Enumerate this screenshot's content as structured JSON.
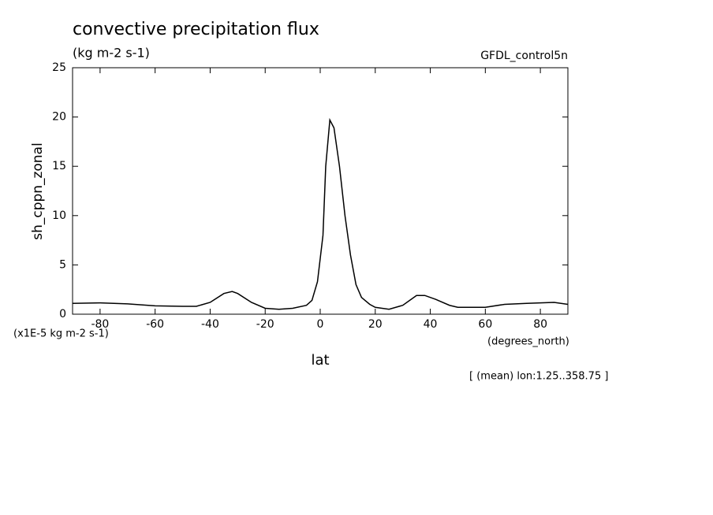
{
  "chart_data": {
    "type": "line",
    "title": "convective precipitation flux",
    "subtitle": "(kg m-2 s-1)",
    "source": "GFDL_control5n",
    "y_label": "sh_cppn_zonal",
    "y_unit_label": "(x1E-5 kg m-2 s-1)",
    "x_label": "lat",
    "x_unit_label": "(degrees_north)",
    "annotation": "[ (mean) lon:1.25..358.75 ]",
    "x": [
      -90,
      -80,
      -70,
      -60,
      -50,
      -45,
      -40,
      -35,
      -32,
      -30,
      -25,
      -20,
      -15,
      -10,
      -5,
      -3,
      -1,
      1,
      2,
      3.5,
      5,
      7,
      9,
      11,
      13,
      15,
      18,
      20,
      25,
      30,
      35,
      38,
      42,
      47,
      50,
      55,
      60,
      67,
      75,
      85,
      90
    ],
    "series": [
      {
        "name": "sh_cppn_zonal",
        "color": "#000000",
        "values": [
          1.1,
          1.15,
          1.05,
          0.85,
          0.8,
          0.8,
          1.2,
          2.1,
          2.3,
          2.1,
          1.2,
          0.6,
          0.5,
          0.6,
          0.9,
          1.4,
          3.3,
          8,
          15,
          19.7,
          18.9,
          15,
          10,
          6,
          3,
          1.7,
          1.0,
          0.7,
          0.5,
          0.9,
          1.9,
          1.9,
          1.5,
          0.9,
          0.7,
          0.7,
          0.7,
          1.0,
          1.1,
          1.2,
          1.0
        ]
      }
    ],
    "xlim": [
      -90,
      90
    ],
    "xticks": [
      -80,
      -60,
      -40,
      -20,
      0,
      20,
      40,
      60,
      80
    ],
    "ylim": [
      0,
      25
    ],
    "yticks": [
      0,
      5,
      10,
      15,
      20,
      25
    ]
  }
}
